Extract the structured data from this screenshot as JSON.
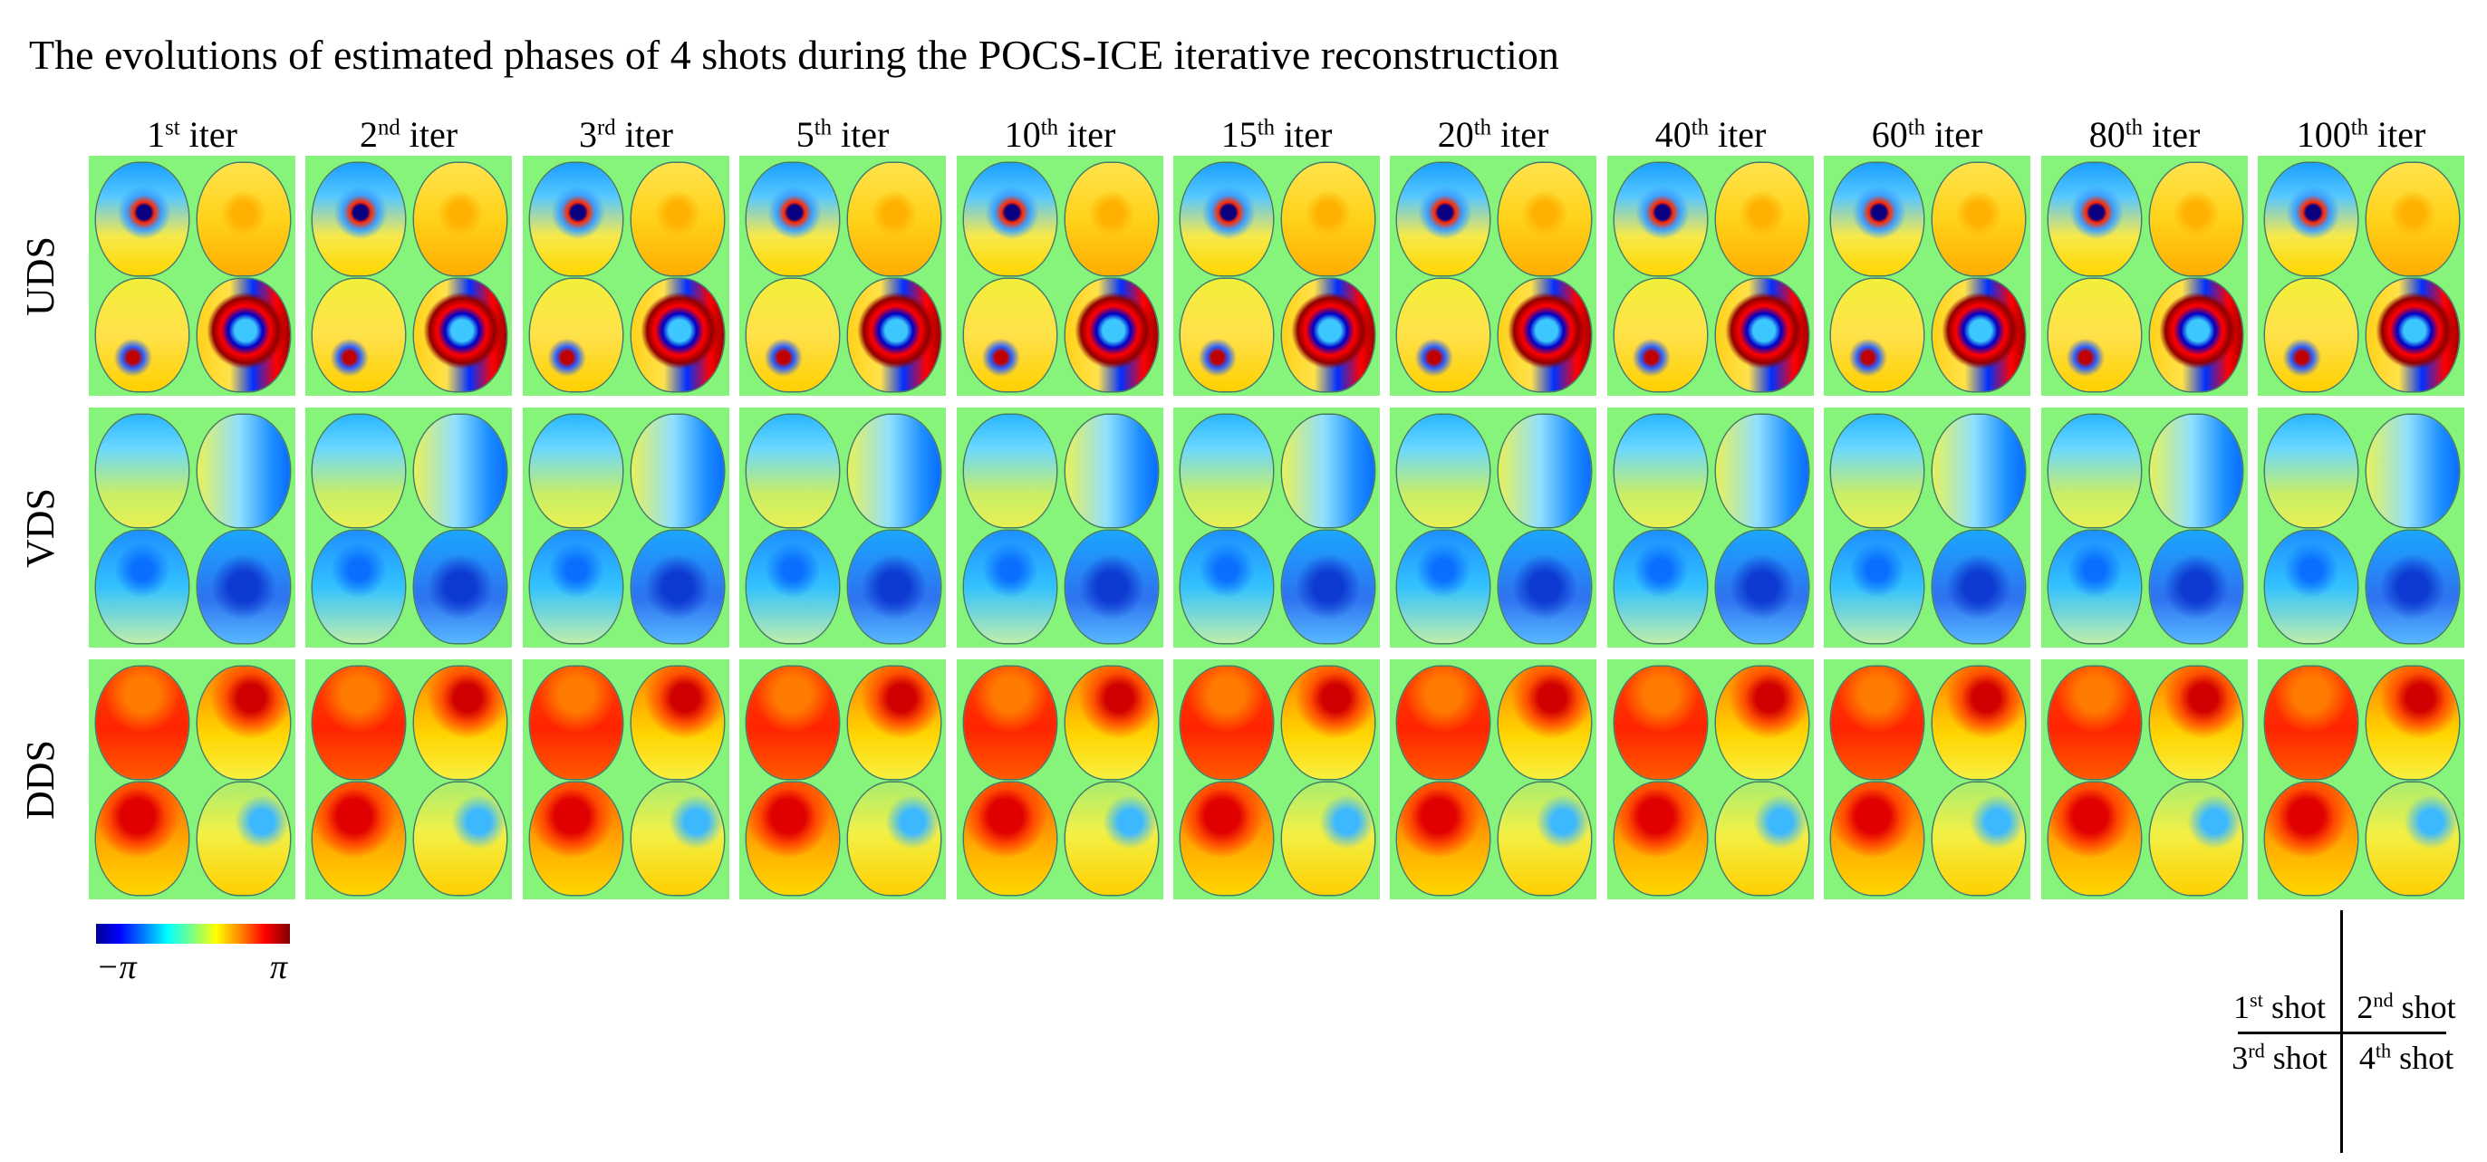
{
  "title": "The evolutions of estimated phases of 4 shots during the POCS-ICE iterative reconstruction",
  "columns": [
    {
      "num": "1",
      "suffix": "st",
      "rest": " iter"
    },
    {
      "num": "2",
      "suffix": "nd",
      "rest": " iter"
    },
    {
      "num": "3",
      "suffix": "rd",
      "rest": " iter"
    },
    {
      "num": "5",
      "suffix": "th",
      "rest": " iter"
    },
    {
      "num": "10",
      "suffix": "th",
      "rest": " iter"
    },
    {
      "num": "15",
      "suffix": "th",
      "rest": " iter"
    },
    {
      "num": "20",
      "suffix": "th",
      "rest": " iter"
    },
    {
      "num": "40",
      "suffix": "th",
      "rest": " iter"
    },
    {
      "num": "60",
      "suffix": "th",
      "rest": " iter"
    },
    {
      "num": "80",
      "suffix": "th",
      "rest": " iter"
    },
    {
      "num": "100",
      "suffix": "th",
      "rest": " iter"
    }
  ],
  "rows": [
    "UDS",
    "VDS",
    "DDS"
  ],
  "colorbar": {
    "min_label": "−π",
    "max_label": "π"
  },
  "legend": [
    {
      "num": "1",
      "suffix": "st",
      "rest": " shot"
    },
    {
      "num": "2",
      "suffix": "nd",
      "rest": " shot"
    },
    {
      "num": "3",
      "suffix": "rd",
      "rest": " shot"
    },
    {
      "num": "4",
      "suffix": "th",
      "rest": " shot"
    }
  ],
  "colors": {
    "background": "#86f47a"
  }
}
